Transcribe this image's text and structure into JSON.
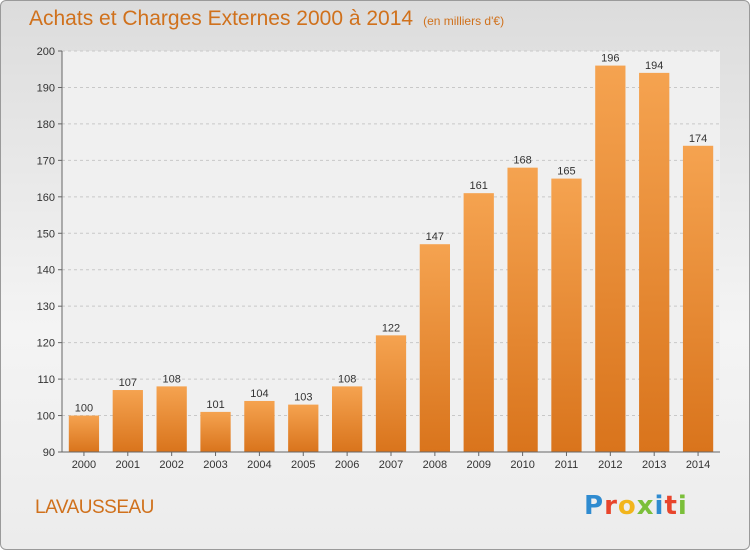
{
  "header": {
    "title": "Achats et Charges Externes 2000 à 2014",
    "subtitle": "(en milliers d'€)"
  },
  "footer": {
    "commune": "LAVAUSSEAU",
    "logo_text": "Proxiti",
    "logo_colors": [
      "#2f8bd0",
      "#e8452c",
      "#f2b51c",
      "#7bbf3a",
      "#2f8bd0",
      "#e8452c",
      "#7bbf3a"
    ]
  },
  "chart_data": {
    "type": "bar",
    "title": "Achats et Charges Externes 2000 à 2014",
    "subtitle": "(en milliers d'€)",
    "categories": [
      "2000",
      "2001",
      "2002",
      "2003",
      "2004",
      "2005",
      "2006",
      "2007",
      "2008",
      "2009",
      "2010",
      "2011",
      "2012",
      "2013",
      "2014"
    ],
    "values": [
      100,
      107,
      108,
      101,
      104,
      103,
      108,
      122,
      147,
      161,
      168,
      165,
      196,
      194,
      174
    ],
    "ylim": [
      90,
      200
    ],
    "yticks": [
      90,
      100,
      110,
      120,
      130,
      140,
      150,
      160,
      170,
      180,
      190,
      200
    ],
    "grid": true,
    "bar_color_top": "#f5a350",
    "bar_color_bottom": "#d9741c"
  }
}
